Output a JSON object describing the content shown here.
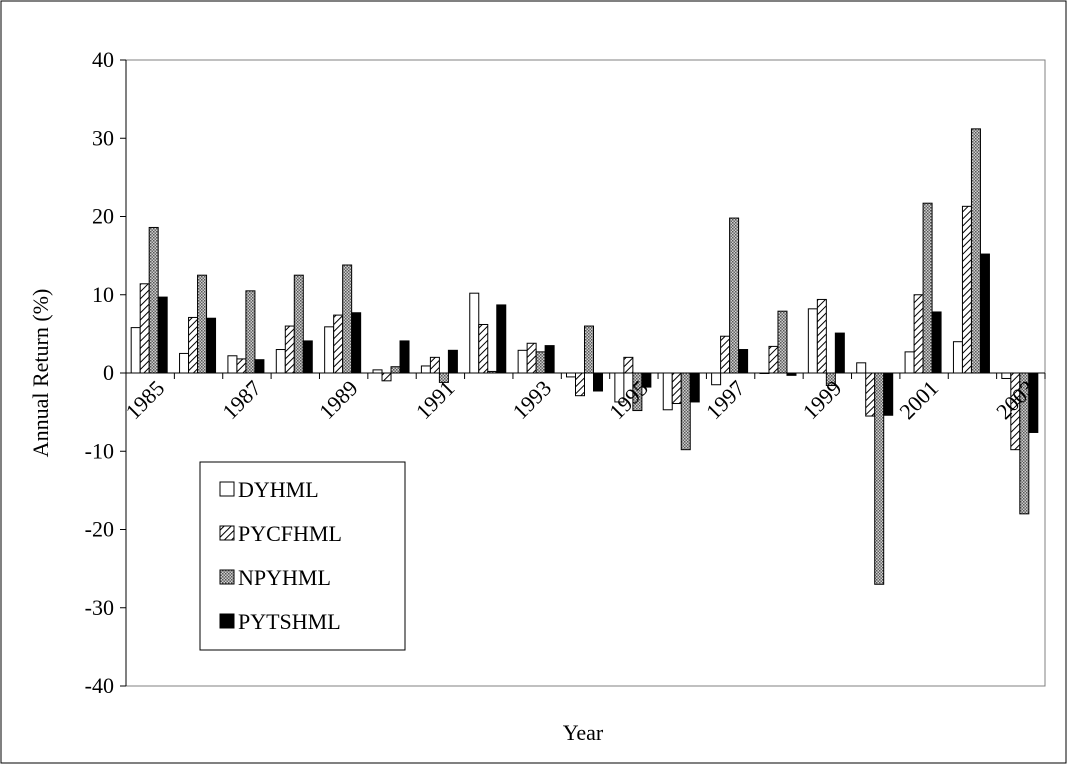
{
  "chart_data": {
    "type": "bar",
    "title": "",
    "xlabel": "Year",
    "ylabel": "Annual Return (%)",
    "ylim": [
      -40,
      40
    ],
    "yticks": [
      -40,
      -30,
      -20,
      -10,
      0,
      10,
      20,
      30,
      40
    ],
    "categories": [
      "1985",
      "1986",
      "1987",
      "1988",
      "1989",
      "1990",
      "1991",
      "1992",
      "1993",
      "1994",
      "1995",
      "1996",
      "1997",
      "1998",
      "1999",
      "2000",
      "2001",
      "2002",
      "2003"
    ],
    "xtick_labels": [
      "1985",
      "",
      "1987",
      "",
      "1989",
      "",
      "1991",
      "",
      "1993",
      "",
      "1995",
      "",
      "1997",
      "",
      "1999",
      "",
      "2001",
      "",
      "2003"
    ],
    "legend_position": "lower-left",
    "grid": false,
    "series": [
      {
        "name": "DYHML",
        "pattern": "white",
        "values": [
          5.8,
          2.5,
          2.2,
          3.0,
          5.9,
          0.4,
          0.9,
          10.2,
          2.9,
          -0.5,
          -3.7,
          -4.7,
          -1.5,
          0.0,
          8.2,
          1.3,
          2.7,
          4.0,
          -0.7
        ]
      },
      {
        "name": "PYCFHML",
        "pattern": "hatch",
        "values": [
          11.4,
          7.1,
          1.8,
          6.0,
          7.4,
          -1.0,
          2.0,
          6.2,
          3.8,
          -2.9,
          2.0,
          -3.9,
          4.7,
          3.4,
          9.4,
          -5.5,
          10.0,
          21.3,
          -9.8
        ]
      },
      {
        "name": "NPYHML",
        "pattern": "dots",
        "values": [
          18.6,
          12.5,
          10.5,
          12.5,
          13.8,
          0.8,
          -1.2,
          0.2,
          2.7,
          6.0,
          -4.8,
          -9.8,
          19.8,
          7.9,
          -1.6,
          -27.0,
          21.7,
          31.2,
          -18.0
        ]
      },
      {
        "name": "PYTSHML",
        "pattern": "black",
        "values": [
          9.7,
          7.0,
          1.7,
          4.1,
          7.7,
          4.1,
          2.9,
          8.7,
          3.5,
          -2.3,
          -1.8,
          -3.7,
          3.0,
          -0.3,
          5.1,
          -5.4,
          7.8,
          15.2,
          -7.6
        ]
      }
    ]
  }
}
